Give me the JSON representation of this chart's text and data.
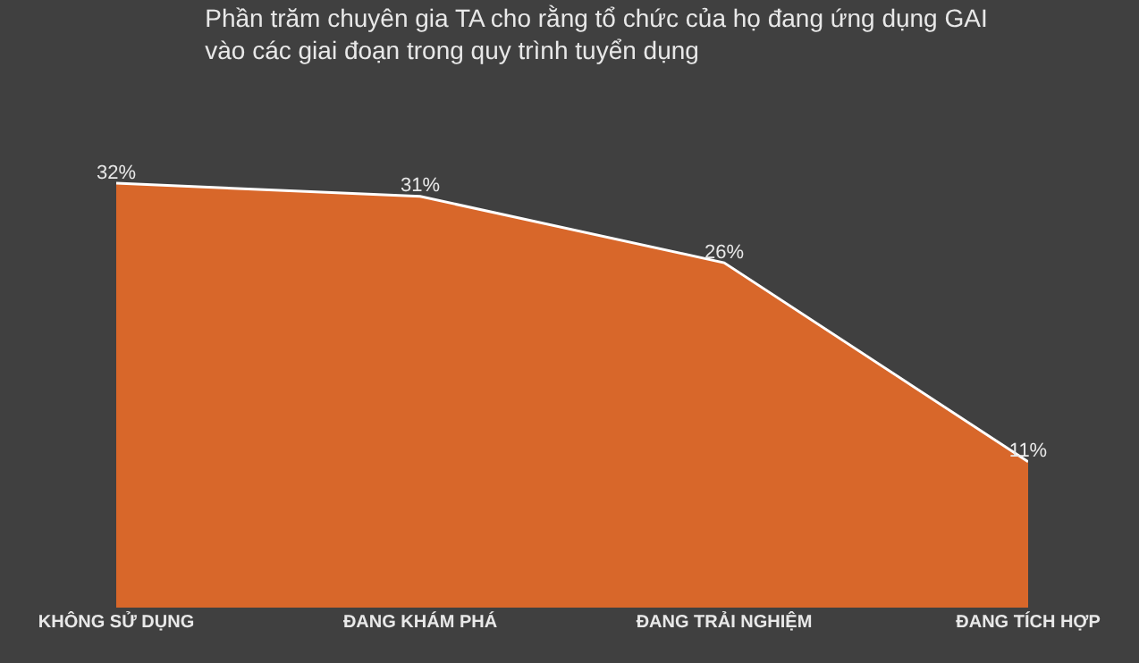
{
  "chart_data": {
    "type": "area",
    "title": "Phần trăm chuyên gia TA cho rằng tổ chức của họ đang ứng dụng GAI\nvào các giai đoạn trong quy trình tuyển dụng",
    "categories": [
      "KHÔNG SỬ DỤNG",
      "ĐANG KHÁM PHÁ",
      "ĐANG TRẢI NGHIỆM",
      "ĐANG TÍCH HỢP"
    ],
    "values": [
      32,
      31,
      26,
      11
    ],
    "value_labels": [
      "32%",
      "31%",
      "26%",
      "11%"
    ],
    "color": "#d8672a",
    "tick_labels": "x"
  }
}
